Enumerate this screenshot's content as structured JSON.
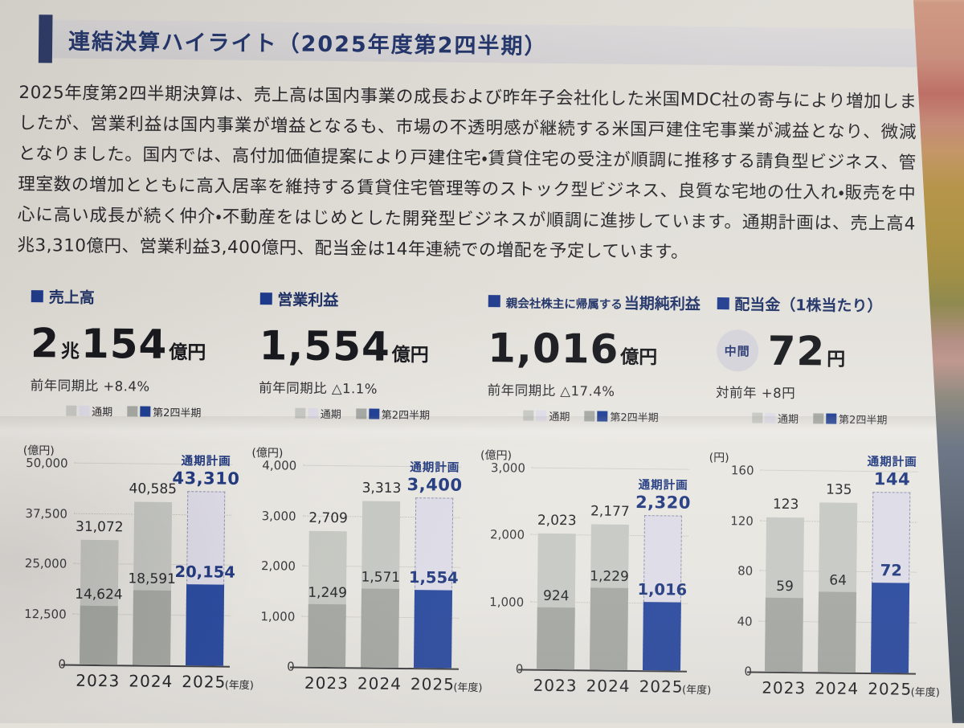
{
  "page": {
    "title": "連結決算ハイライト（2025年度第2四半期）",
    "paragraph": "2025年度第2四半期決算は、売上高は国内事業の成長および昨年子会社化した米国MDC社の寄与により増加しましたが、営業利益は国内事業が増益となるも、市場の不透明感が継続する米国戸建住宅事業が減益となり、微減となりました。国内では、高付加価値提案により戸建住宅・賃貸住宅の受注が順調に推移する請負型ビジネス、管理室数の増加とともに高入居率を維持する賃貸住宅管理等のストック型ビジネス、良質な宅地の仕入れ・販売を中心に高い成長が続く仲介・不動産をはじめとした開発型ビジネスが順調に進捗しています。通期計画は、売上高4兆3,310億円、営業利益3,400億円、配当金は14年連続での増配を予定しています。"
  },
  "kpis": [
    {
      "label_parts": [
        {
          "text": "売上高",
          "small": false
        }
      ],
      "value_parts": [
        {
          "text": "2",
          "small": false
        },
        {
          "text": "兆",
          "small": true
        },
        {
          "text": "154",
          "small": false
        },
        {
          "text": "億円",
          "small": true
        }
      ],
      "subline": "前年同期比 +8.4%"
    },
    {
      "label_parts": [
        {
          "text": "営業利益",
          "small": false
        }
      ],
      "value_parts": [
        {
          "text": "1,554",
          "small": false
        },
        {
          "text": "億円",
          "small": true
        }
      ],
      "subline": "前年同期比 △1.1%"
    },
    {
      "label_parts": [
        {
          "text": "親会社株主に帰属する",
          "small": true
        },
        {
          "text": "当期純利益",
          "small": false
        }
      ],
      "value_parts": [
        {
          "text": "1,016",
          "small": false
        },
        {
          "text": "億円",
          "small": true
        }
      ],
      "subline": "前年同期比 △17.4%"
    },
    {
      "label_parts": [
        {
          "text": "配当金（1株当たり）",
          "small": false
        }
      ],
      "badge": "中間",
      "value_parts": [
        {
          "text": "72",
          "small": false
        },
        {
          "text": "円",
          "small": true
        }
      ],
      "subline": "対前年 +8円"
    }
  ],
  "legend": {
    "full_label": "通期",
    "q2_label": "第2四半期"
  },
  "chart_data": [
    {
      "type": "bar",
      "title": "売上高",
      "unit_label": "(億円)",
      "ymax": 50000,
      "yticks": [
        {
          "v": 50000,
          "label": "50,000"
        },
        {
          "v": 37500,
          "label": "37,500"
        },
        {
          "v": 25000,
          "label": "25,000"
        },
        {
          "v": 12500,
          "label": "12,500"
        },
        {
          "v": 0,
          "label": "0"
        }
      ],
      "categories": [
        "2023",
        "2024",
        "2025"
      ],
      "x_suffix": "(年度)",
      "full": {
        "values": [
          31072,
          40585
        ],
        "labels": [
          "31,072",
          "40,585"
        ]
      },
      "plan": {
        "caption": "通期計画",
        "value": 43310,
        "label": "43,310"
      },
      "q2": {
        "values": [
          14624,
          18591,
          20154
        ],
        "labels": [
          "14,624",
          "18,591",
          "20,154"
        ]
      }
    },
    {
      "type": "bar",
      "title": "営業利益",
      "unit_label": "(億円)",
      "ymax": 4000,
      "yticks": [
        {
          "v": 4000,
          "label": "4,000"
        },
        {
          "v": 3000,
          "label": "3,000"
        },
        {
          "v": 2000,
          "label": "2,000"
        },
        {
          "v": 1000,
          "label": "1,000"
        },
        {
          "v": 0,
          "label": "0"
        }
      ],
      "categories": [
        "2023",
        "2024",
        "2025"
      ],
      "x_suffix": "(年度)",
      "full": {
        "values": [
          2709,
          3313
        ],
        "labels": [
          "2,709",
          "3,313"
        ]
      },
      "plan": {
        "caption": "通期計画",
        "value": 3400,
        "label": "3,400"
      },
      "q2": {
        "values": [
          1249,
          1571,
          1554
        ],
        "labels": [
          "1,249",
          "1,571",
          "1,554"
        ]
      }
    },
    {
      "type": "bar",
      "title": "親会社株主に帰属する当期純利益",
      "unit_label": "(億円)",
      "ymax": 3000,
      "yticks": [
        {
          "v": 3000,
          "label": "3,000"
        },
        {
          "v": 2000,
          "label": "2,000"
        },
        {
          "v": 1000,
          "label": "1,000"
        },
        {
          "v": 0,
          "label": "0"
        }
      ],
      "categories": [
        "2023",
        "2024",
        "2025"
      ],
      "x_suffix": "(年度)",
      "full": {
        "values": [
          2023,
          2177
        ],
        "labels": [
          "2,023",
          "2,177"
        ]
      },
      "plan": {
        "caption": "通期計画",
        "value": 2320,
        "label": "2,320"
      },
      "q2": {
        "values": [
          924,
          1229,
          1016
        ],
        "labels": [
          "924",
          "1,229",
          "1,016"
        ]
      }
    },
    {
      "type": "bar",
      "title": "配当金（1株当たり）",
      "unit_label": "(円)",
      "ymax": 160,
      "yticks": [
        {
          "v": 160,
          "label": "160"
        },
        {
          "v": 120,
          "label": "120"
        },
        {
          "v": 80,
          "label": "80"
        },
        {
          "v": 40,
          "label": "40"
        },
        {
          "v": 0,
          "label": "0"
        }
      ],
      "categories": [
        "2023",
        "2024",
        "2025"
      ],
      "x_suffix": "(年度)",
      "full": {
        "values": [
          123,
          135
        ],
        "labels": [
          "123",
          "135"
        ]
      },
      "plan": {
        "caption": "通期計画",
        "value": 144,
        "label": "144"
      },
      "q2": {
        "values": [
          59,
          64,
          72
        ],
        "labels": [
          "59",
          "64",
          "72"
        ]
      }
    }
  ],
  "colors": {
    "navy_text": "#21397f",
    "accent_block": "#2c3a68",
    "bar_full_gray": "#c6c8c3",
    "bar_q2_gray": "#a5a8a3",
    "bar_plan_lavender": "#dddbe6",
    "bar_plan_border": "#8f93ad",
    "bar_blue": "#2a4a9e",
    "legend_navy": "#1f3e94"
  }
}
